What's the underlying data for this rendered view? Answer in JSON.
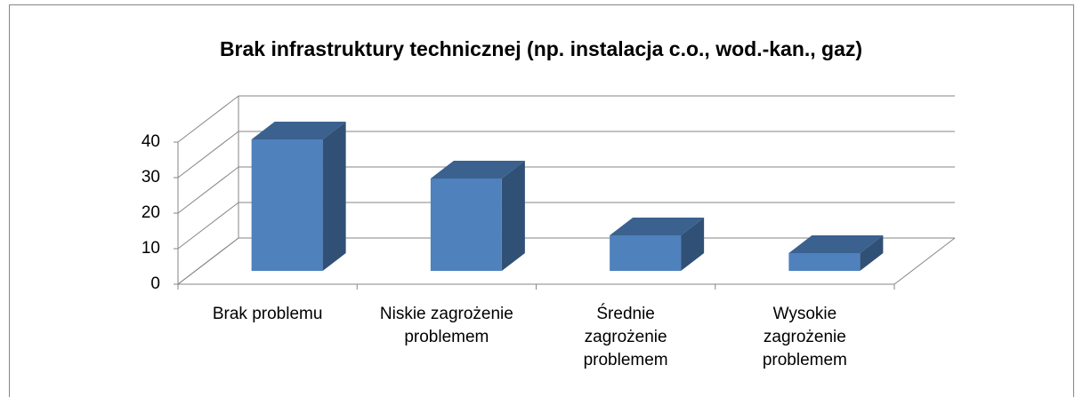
{
  "chart_data": {
    "type": "bar3d",
    "title": "Brak infrastruktury technicznej (np. instalacja c.o., wod.-kan., gaz)",
    "categories": [
      "Brak problemu",
      "Niskie zagrożenie\nproblemem",
      "Średnie\nzagrożenie\nproblemem",
      "Wysokie\nzagrożenie\nproblemem"
    ],
    "values": [
      37,
      26,
      10,
      5
    ],
    "color": "#4f81bd",
    "ylim": [
      0,
      40
    ],
    "yticks": [
      0,
      10,
      20,
      30,
      40
    ],
    "grid": true
  }
}
